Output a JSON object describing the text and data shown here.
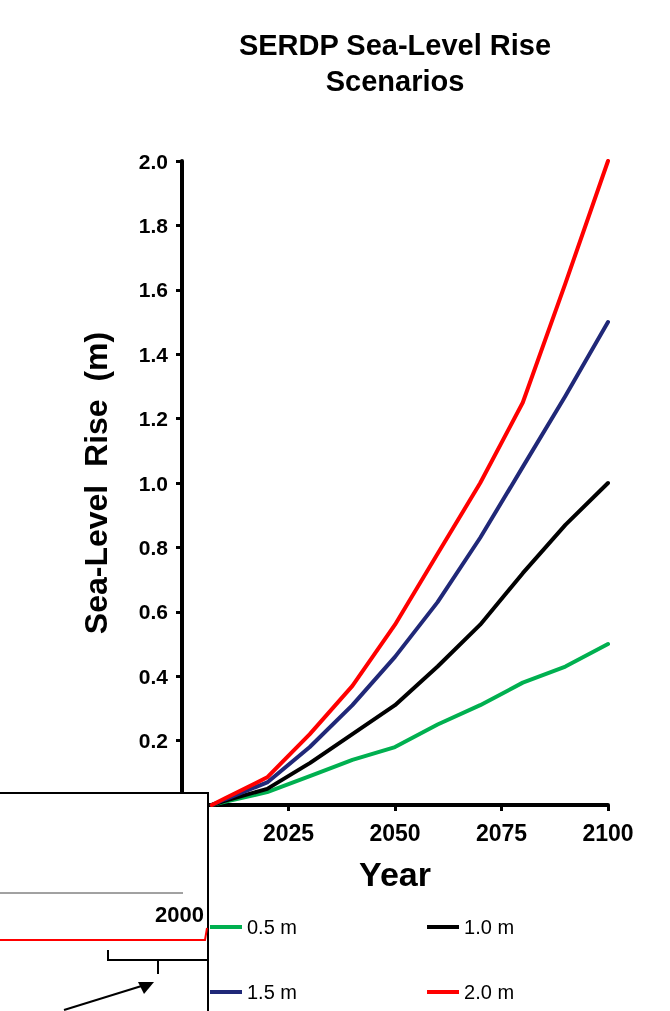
{
  "chart_data": {
    "type": "line",
    "title": "SERDP Sea-Level Rise\nScenarios",
    "xlabel": "Year",
    "ylabel": "Sea-Level  Rise  (m)",
    "x": [
      2007,
      2010,
      2020,
      2030,
      2040,
      2050,
      2060,
      2070,
      2080,
      2090,
      2100
    ],
    "series": [
      {
        "name": "0.5 m",
        "color": "#00b050",
        "values": [
          0,
          0.01,
          0.04,
          0.09,
          0.14,
          0.18,
          0.25,
          0.31,
          0.38,
          0.43,
          0.5
        ]
      },
      {
        "name": "1.0 m",
        "color": "#000000",
        "values": [
          0,
          0.013,
          0.05,
          0.13,
          0.22,
          0.31,
          0.43,
          0.56,
          0.72,
          0.87,
          1.0
        ]
      },
      {
        "name": "1.5 m",
        "color": "#202878",
        "values": [
          0,
          0.017,
          0.07,
          0.18,
          0.31,
          0.46,
          0.63,
          0.83,
          1.05,
          1.27,
          1.5
        ]
      },
      {
        "name": "2.0 m",
        "color": "#ff0000",
        "values": [
          0,
          0.02,
          0.086,
          0.22,
          0.37,
          0.56,
          0.78,
          1.0,
          1.25,
          1.62,
          2.0
        ]
      }
    ],
    "xlim": [
      2000,
      2100
    ],
    "xticks": [
      2025,
      2050,
      2075,
      2100
    ],
    "ylim": [
      0,
      2.0
    ],
    "yticks": [
      {
        "value": 0,
        "label": null
      },
      0.2,
      0.4,
      0.6,
      0.8,
      {
        "value": 1.0,
        "label": "1.0"
      },
      1.2,
      1.4,
      1.6,
      1.8,
      {
        "value": 2.0,
        "label": "2.0"
      }
    ],
    "annotations": [
      "2000"
    ],
    "grid": false,
    "legend": "bottom",
    "marker": "none",
    "line_style": "solid"
  }
}
